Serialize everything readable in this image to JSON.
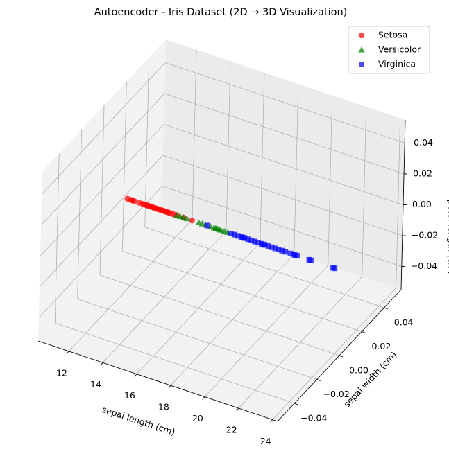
{
  "chart_data": {
    "type": "scatter3d",
    "title": "Autoencoder - Iris Dataset (2D → 3D Visualization)",
    "xlabel": "sepal length (cm)",
    "ylabel": "sepal width (cm)",
    "zlabel": "petal length (cm)",
    "xlim": [
      10.2,
      24.3
    ],
    "ylim": [
      -0.055,
      0.055
    ],
    "zlim": [
      -0.055,
      0.055
    ],
    "xticks": [
      12,
      14,
      16,
      18,
      20,
      22,
      24
    ],
    "yticks": [
      {
        "value": -0.04,
        "label": "−0.04"
      },
      {
        "value": -0.02,
        "label": "−0.02"
      },
      {
        "value": 0,
        "label": "0.00"
      },
      0.02,
      0.04
    ],
    "zticks": [
      {
        "value": -0.04,
        "label": "−0.04"
      },
      {
        "value": -0.02,
        "label": "−0.02"
      },
      {
        "value": 0,
        "label": "0.00"
      },
      0.02,
      0.04
    ],
    "grid": true,
    "legend": "upper right",
    "series": [
      {
        "name": "Setosa",
        "color": "#ff0000",
        "marker": "circle",
        "x": [
          11.7,
          11.9,
          12.0,
          12.1,
          12.4,
          12.6,
          12.7,
          12.8,
          12.9,
          13.0,
          13.1,
          13.2,
          13.3,
          13.4,
          13.5,
          13.6,
          13.7,
          13.8,
          13.9,
          14.0,
          14.1,
          14.2,
          14.4,
          14.6,
          15.0,
          15.5
        ],
        "y": [
          0,
          0,
          0,
          0,
          0,
          0,
          0,
          0,
          0,
          0,
          0,
          0,
          0,
          0,
          0,
          0,
          0,
          0,
          0,
          0,
          0,
          0,
          0,
          0,
          0,
          0
        ],
        "z": [
          0,
          0,
          0,
          0,
          0,
          0,
          0,
          0,
          0,
          0,
          0,
          0,
          0,
          0,
          0,
          0,
          0,
          0,
          0,
          0,
          0,
          0,
          0,
          0,
          0,
          0
        ]
      },
      {
        "name": "Versicolor",
        "color": "#008000",
        "marker": "triangle",
        "x": [
          14.6,
          14.8,
          15.0,
          15.2,
          15.9,
          16.1,
          16.3,
          16.6,
          16.8,
          16.9,
          17.0,
          17.1,
          17.2,
          17.4,
          17.6
        ],
        "y": [
          0,
          0,
          0,
          0,
          0,
          0,
          0,
          0,
          0,
          0,
          0,
          0,
          0,
          0,
          0
        ],
        "z": [
          0,
          0,
          0,
          0,
          0,
          0,
          0,
          0,
          0,
          0,
          0,
          0,
          0,
          0,
          0
        ]
      },
      {
        "name": "Virginica",
        "color": "#0000ff",
        "marker": "square",
        "x": [
          16.4,
          17.8,
          18.0,
          18.2,
          18.4,
          18.5,
          18.6,
          18.8,
          19.0,
          19.2,
          19.4,
          19.6,
          19.7,
          19.8,
          20.0,
          20.2,
          20.4,
          20.6,
          20.8,
          21.0,
          21.3,
          21.5,
          21.6,
          21.7,
          22.4,
          22.5,
          23.8,
          23.9
        ],
        "y": [
          0,
          0,
          0,
          0,
          0,
          0,
          0,
          0,
          0,
          0,
          0,
          0,
          0,
          0,
          0,
          0,
          0,
          0,
          0,
          0,
          0,
          0,
          0,
          0,
          0,
          0,
          0,
          0
        ],
        "z": [
          0,
          0,
          0,
          0,
          0,
          0,
          0,
          0,
          0,
          0,
          0,
          0,
          0,
          0,
          0,
          0,
          0,
          0,
          0,
          0,
          0,
          0,
          0,
          0,
          0,
          0,
          0,
          0
        ]
      }
    ]
  }
}
